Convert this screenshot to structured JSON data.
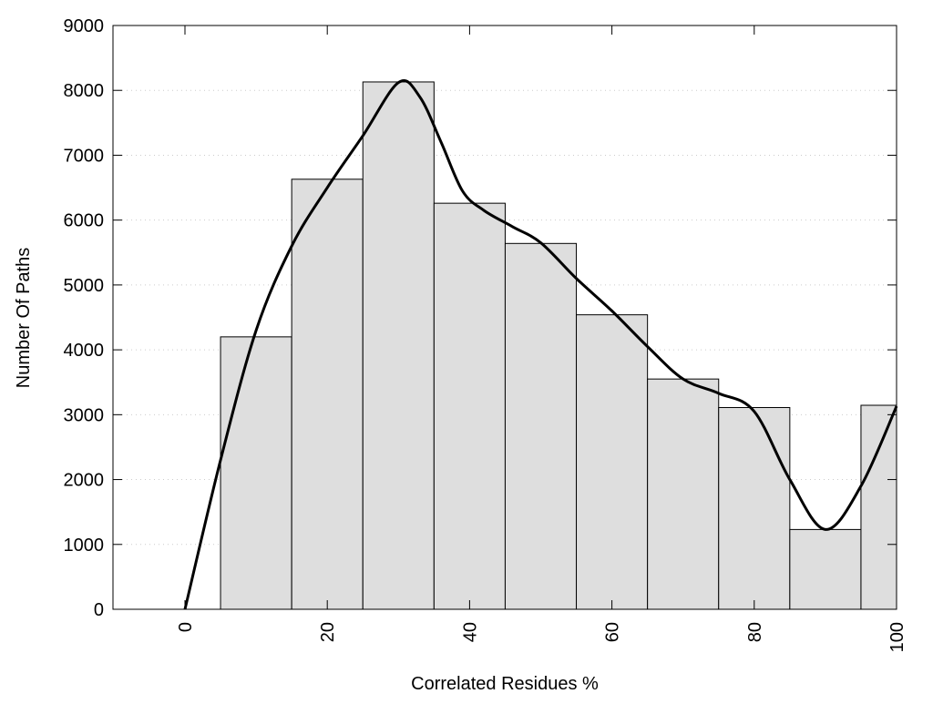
{
  "chart_data": {
    "type": "bar",
    "title": "",
    "xlabel": "Correlated Residues %",
    "ylabel": "Number Of Paths",
    "xlim": [
      -10,
      100
    ],
    "ylim": [
      0,
      9000
    ],
    "grid": "horizontal dotted",
    "xticks": [
      0,
      20,
      40,
      60,
      80,
      100
    ],
    "yticks": [
      0,
      1000,
      2000,
      3000,
      4000,
      5000,
      6000,
      7000,
      8000,
      9000
    ],
    "bar_width": 10,
    "bars": {
      "x": [
        10,
        20,
        30,
        40,
        50,
        60,
        70,
        80,
        90,
        100
      ],
      "values": [
        4200,
        6630,
        8130,
        6260,
        5640,
        4540,
        3550,
        3110,
        1230,
        3145
      ]
    },
    "curve": {
      "x": [
        0,
        5,
        10,
        15,
        20,
        25,
        30,
        33,
        36,
        39,
        42,
        46,
        50,
        55,
        60,
        65,
        70,
        75,
        80,
        85,
        90,
        95,
        100
      ],
      "y": [
        0,
        2300,
        4300,
        5600,
        6500,
        7300,
        8120,
        7900,
        7200,
        6450,
        6150,
        5900,
        5650,
        5100,
        4600,
        4050,
        3550,
        3330,
        3050,
        2000,
        1230,
        1900,
        3130
      ]
    },
    "colors": {
      "bar_fill": "#dedede",
      "bar_stroke": "#000000",
      "curve": "#000000",
      "grid": "#cccccc"
    }
  }
}
